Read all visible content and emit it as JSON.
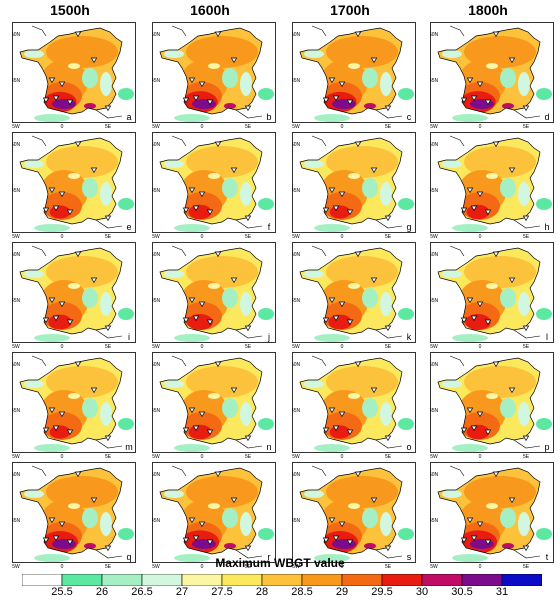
{
  "columns": [
    "1500h",
    "1600h",
    "1700h",
    "1800h"
  ],
  "panels": {
    "letters": [
      "a",
      "b",
      "c",
      "d",
      "e",
      "f",
      "g",
      "h",
      "i",
      "j",
      "k",
      "l",
      "m",
      "n",
      "o",
      "p",
      "q",
      "r",
      "s",
      "t"
    ],
    "lat_labels": [
      "50N",
      "45N"
    ],
    "lon_labels": [
      "5W",
      "0",
      "5E"
    ]
  },
  "colorbar": {
    "title": "Maximum WBGT value",
    "ticks": [
      "25.5",
      "26",
      "26.5",
      "27",
      "27.5",
      "28",
      "28.5",
      "29",
      "29.5",
      "30",
      "30.5",
      "31"
    ],
    "colors": [
      "#ffffff",
      "#5ce8a0",
      "#a4f0c4",
      "#d2f7e0",
      "#fbf6a4",
      "#fce85c",
      "#fcc23c",
      "#f8981c",
      "#f46a14",
      "#e81c10",
      "#c00c64",
      "#7c0c8c",
      "#0c0cc8"
    ]
  }
}
